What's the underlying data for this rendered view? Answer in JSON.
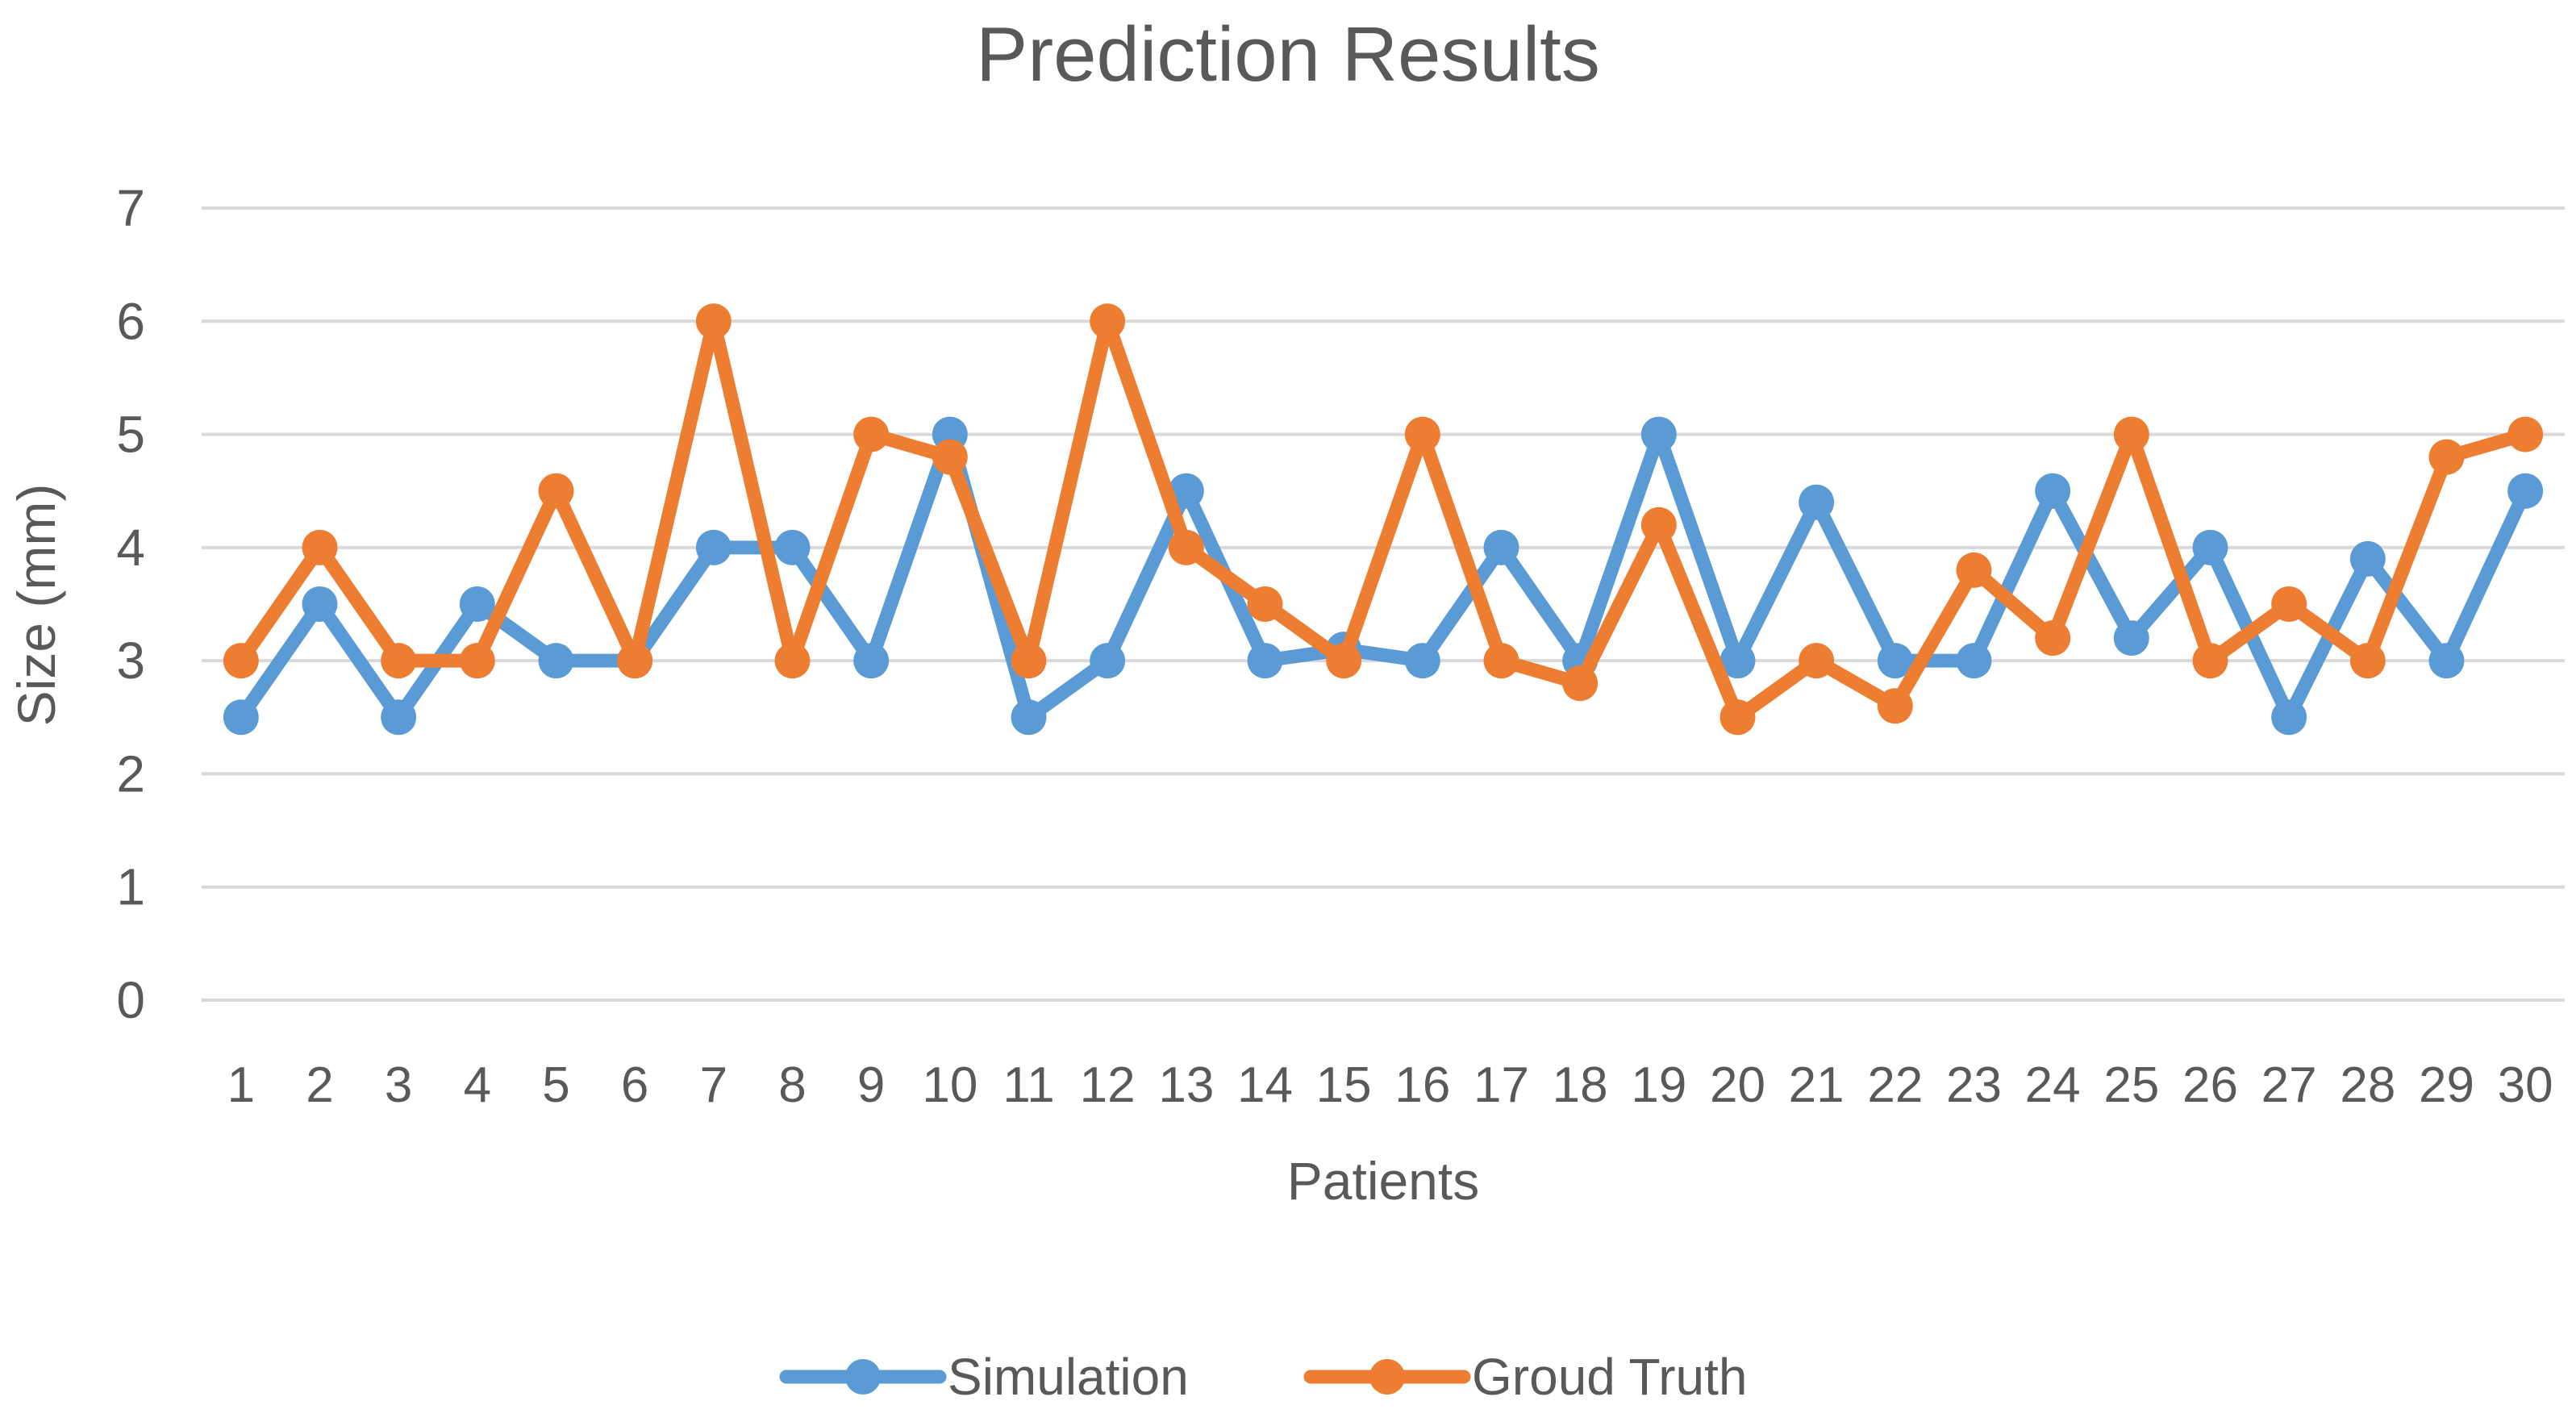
{
  "chart_data": {
    "type": "line",
    "title": "Prediction Results",
    "xlabel": "Patients",
    "ylabel": "Size (mm)",
    "ylim": [
      0,
      7
    ],
    "yticks": [
      "0",
      "1",
      "2",
      "3",
      "4",
      "5",
      "6",
      "7"
    ],
    "grid": true,
    "legend_position": "bottom",
    "categories": [
      "1",
      "2",
      "3",
      "4",
      "5",
      "6",
      "7",
      "8",
      "9",
      "10",
      "11",
      "12",
      "13",
      "14",
      "15",
      "16",
      "17",
      "18",
      "19",
      "20",
      "21",
      "22",
      "23",
      "24",
      "25",
      "26",
      "27",
      "28",
      "29",
      "30"
    ],
    "series": [
      {
        "name": "Simulation",
        "color": "#5B9BD5",
        "values": [
          2.5,
          3.5,
          2.5,
          3.5,
          3,
          3,
          4,
          4,
          3,
          5,
          2.5,
          3,
          4.5,
          3,
          3.1,
          3,
          4,
          3,
          5,
          3,
          4.4,
          3,
          3,
          4.5,
          3.2,
          4,
          2.5,
          3.9,
          3,
          4.5
        ]
      },
      {
        "name": "Groud Truth",
        "color": "#ED7D31",
        "values": [
          3,
          4,
          3,
          3,
          4.5,
          3,
          6,
          3,
          5,
          4.8,
          3,
          6,
          4,
          3.5,
          3,
          5,
          3,
          2.8,
          4.2,
          2.5,
          3,
          2.6,
          3.8,
          3.2,
          5,
          3,
          3.5,
          3,
          4.8,
          5
        ]
      }
    ]
  }
}
